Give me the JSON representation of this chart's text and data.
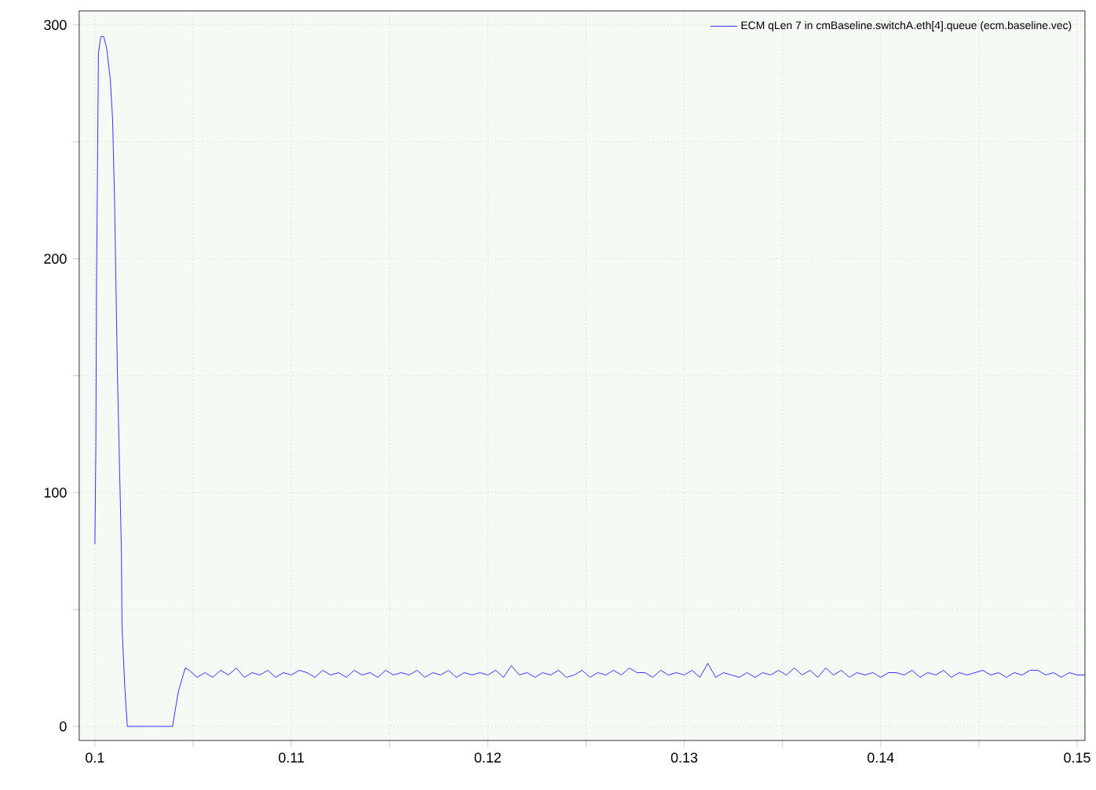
{
  "chart_data": {
    "type": "line",
    "xlim": [
      0.0992,
      0.1504
    ],
    "ylim": [
      -6,
      306
    ],
    "xticks": [
      0.1,
      {
        "value": 0.105,
        "label": null
      },
      0.11,
      {
        "value": 0.115,
        "label": null
      },
      0.12,
      {
        "value": 0.125,
        "label": null
      },
      0.13,
      {
        "value": 0.135,
        "label": null
      },
      0.14,
      {
        "value": 0.145,
        "label": null
      },
      0.15
    ],
    "yticks": [
      0,
      {
        "value": 50,
        "label": null
      },
      100,
      {
        "value": 150,
        "label": null
      },
      200,
      {
        "value": 250,
        "label": null
      },
      300
    ],
    "grid": true,
    "legend": "top right",
    "marker": "none",
    "line_style": "solid",
    "x": [
      0.1,
      0.10005,
      0.10008,
      0.10018,
      0.1003,
      0.10045,
      0.1006,
      0.10078,
      0.1009,
      0.101,
      0.10115,
      0.10135,
      0.10138,
      0.10152,
      0.10165,
      0.10395,
      0.10425,
      0.1046,
      0.1048,
      0.1052,
      0.1056,
      0.106,
      0.1064,
      0.1068,
      0.1072,
      0.1076,
      0.108,
      0.1084,
      0.1088,
      0.1092,
      0.1096,
      0.11,
      0.1104,
      0.1108,
      0.1112,
      0.1116,
      0.112,
      0.1124,
      0.1128,
      0.1132,
      0.1136,
      0.114,
      0.1144,
      0.1148,
      0.1152,
      0.1156,
      0.116,
      0.1164,
      0.1168,
      0.1172,
      0.1176,
      0.118,
      0.1184,
      0.1188,
      0.1192,
      0.1196,
      0.12,
      0.1204,
      0.1208,
      0.1212,
      0.1216,
      0.122,
      0.1224,
      0.1228,
      0.1232,
      0.1236,
      0.124,
      0.1244,
      0.1248,
      0.1252,
      0.1256,
      0.126,
      0.1264,
      0.1268,
      0.1272,
      0.1276,
      0.128,
      0.1284,
      0.1288,
      0.1292,
      0.1296,
      0.13,
      0.1304,
      0.1308,
      0.1312,
      0.1316,
      0.132,
      0.1324,
      0.1328,
      0.1332,
      0.1336,
      0.134,
      0.1344,
      0.1348,
      0.1352,
      0.1356,
      0.136,
      0.1364,
      0.1368,
      0.1372,
      0.1376,
      0.138,
      0.1384,
      0.1388,
      0.1392,
      0.1396,
      0.14,
      0.1404,
      0.1408,
      0.1412,
      0.1416,
      0.142,
      0.1424,
      0.1428,
      0.1432,
      0.1436,
      0.144,
      0.1444,
      0.1448,
      0.1452,
      0.1456,
      0.146,
      0.1464,
      0.1468,
      0.1472,
      0.1476,
      0.148,
      0.1484,
      0.1488,
      0.1492,
      0.1496,
      0.15,
      0.1504
    ],
    "series": [
      {
        "name": "ECM qLen 7 in cmBaseline.switchA.eth[4].queue (ecm.baseline.vec)",
        "color": "#0000ff",
        "values": [
          78,
          120,
          185,
          288,
          295,
          295,
          290,
          277,
          260,
          225,
          150,
          75,
          43,
          17,
          0,
          0,
          15,
          25,
          24,
          21,
          23,
          21,
          24,
          22,
          25,
          21,
          23,
          22,
          24,
          21,
          23,
          22,
          24,
          23,
          21,
          24,
          22,
          23,
          21,
          24,
          22,
          23,
          21,
          24,
          22,
          23,
          22,
          24,
          21,
          23,
          22,
          24,
          21,
          23,
          22,
          23,
          22,
          24,
          21,
          26,
          22,
          23,
          21,
          23,
          22,
          24,
          21,
          22,
          24,
          21,
          23,
          22,
          24,
          22,
          25,
          23,
          23,
          21,
          24,
          22,
          23,
          22,
          24,
          21,
          27,
          21,
          23,
          22,
          21,
          23,
          21,
          23,
          22,
          24,
          22,
          25,
          22,
          24,
          21,
          25,
          22,
          24,
          21,
          23,
          22,
          23,
          21,
          23,
          23,
          22,
          24,
          21,
          23,
          22,
          24,
          21,
          23,
          22,
          23,
          24,
          22,
          23,
          21,
          23,
          22,
          24,
          24,
          22,
          23,
          21,
          23,
          22,
          22
        ]
      }
    ]
  }
}
